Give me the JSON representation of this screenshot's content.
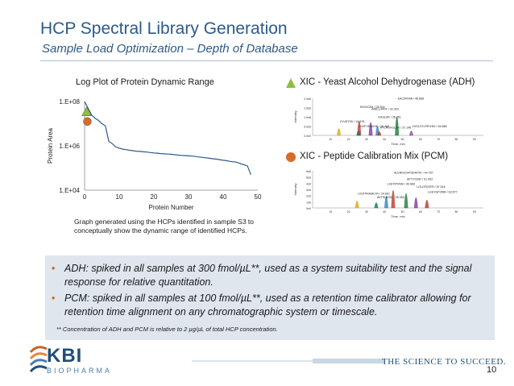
{
  "slide": {
    "title": "HCP Spectral Library Generation",
    "subtitle": "Sample Load Optimization – Depth of Database",
    "page_number": "10"
  },
  "dynamic_range_plot": {
    "title": "Log Plot of Protein Dynamic Range",
    "ylabel": "Protein Area",
    "xlabel": "Protein Number",
    "y_ticks": [
      "1.E+04",
      "1.E+06",
      "1.E+08"
    ],
    "x_ticks": [
      "0",
      "10",
      "20",
      "30",
      "40",
      "50"
    ],
    "caption": "Graph generated using the HCPs identified in sample S3 to conceptually show the dynamic range of identified HCPs.",
    "adh_marker": {
      "x": 0.6,
      "y_log10": 7.5,
      "color": "#8dbf3f"
    },
    "pcm_marker": {
      "x": 0.8,
      "y_log10": 7.1,
      "color": "#d86a2a"
    },
    "curve_log10": [
      [
        0.0,
        8.0
      ],
      [
        1,
        7.7
      ],
      [
        2,
        7.4
      ],
      [
        3,
        7.25
      ],
      [
        4,
        7.15
      ],
      [
        5,
        7.0
      ],
      [
        6,
        6.9
      ],
      [
        7,
        6.2
      ],
      [
        8,
        6.1
      ],
      [
        9,
        5.95
      ],
      [
        10,
        5.9
      ],
      [
        11,
        5.85
      ],
      [
        12,
        5.83
      ],
      [
        13,
        5.8
      ],
      [
        14,
        5.78
      ],
      [
        15,
        5.76
      ],
      [
        16,
        5.75
      ],
      [
        17,
        5.73
      ],
      [
        18,
        5.72
      ],
      [
        19,
        5.7
      ],
      [
        20,
        5.68
      ],
      [
        21,
        5.67
      ],
      [
        22,
        5.65
      ],
      [
        23,
        5.64
      ],
      [
        24,
        5.63
      ],
      [
        25,
        5.62
      ],
      [
        26,
        5.6
      ],
      [
        27,
        5.58
      ],
      [
        28,
        5.57
      ],
      [
        29,
        5.56
      ],
      [
        30,
        5.55
      ],
      [
        31,
        5.54
      ],
      [
        32,
        5.52
      ],
      [
        33,
        5.5
      ],
      [
        34,
        5.48
      ],
      [
        35,
        5.46
      ],
      [
        36,
        5.44
      ],
      [
        37,
        5.42
      ],
      [
        38,
        5.4
      ],
      [
        39,
        5.38
      ],
      [
        40,
        5.35
      ],
      [
        41,
        5.33
      ],
      [
        42,
        5.3
      ],
      [
        43,
        5.28
      ],
      [
        44,
        5.26
      ],
      [
        45,
        5.2
      ],
      [
        46,
        5.15
      ],
      [
        47,
        5.1
      ],
      [
        48,
        4.7
      ]
    ]
  },
  "xic_adh": {
    "heading": "XIC - Yeast Alcohol Dehydrogenase (ADH)",
    "marker_color": "#8dbf3f",
    "ylabel": "Intensity",
    "xlabel": "Time, min",
    "y_ticks": [
      "0.0e0",
      "5.0e5",
      "1.0e6",
      "1.5e6",
      "2.0e6"
    ],
    "x_ticks": [
      "10",
      "20",
      "30",
      "40",
      "50",
      "60",
      "70",
      "80",
      "90"
    ],
    "peaks": [
      {
        "label": "EALDFFAR / 46.866",
        "t": 46.9,
        "h": 0.95,
        "color": "#1b7b3a"
      },
      {
        "label": "SISIVGSK / 25.904",
        "t": 25.9,
        "h": 0.72,
        "color": "#c0392b"
      },
      {
        "label": "ANELLINVK / 32.303",
        "t": 32.3,
        "h": 0.66,
        "color": "#7d3c98"
      },
      {
        "label": "EAGLAK / 36.051",
        "t": 36.1,
        "h": 0.45,
        "color": "#2e86c1"
      },
      {
        "label": "YVVDTSK / 14.578",
        "t": 14.6,
        "h": 0.33,
        "color": "#d4ac0d"
      },
      {
        "label": "GVIFYESDHK / 25.485",
        "t": 25.5,
        "h": 0.2,
        "color": "#117864"
      },
      {
        "label": "ATCAGVGLGK / 37.148",
        "t": 37.1,
        "h": 0.16,
        "color": "#b03a2e"
      },
      {
        "label": "VVGLSTLPEIYEK / 54.866",
        "t": 54.9,
        "h": 0.2,
        "color": "#884ea0"
      }
    ]
  },
  "xic_pcm": {
    "heading": "XIC - Peptide Calibration Mix (PCM)",
    "marker_color": "#d86a2a",
    "ylabel": "Intensity",
    "xlabel": "Time, min",
    "y_ticks": [
      "0e0",
      "1e6",
      "2e6",
      "3e6",
      "4e6",
      "5e6",
      "6e6"
    ],
    "x_ticks": [
      "10",
      "20",
      "30",
      "40",
      "50",
      "60",
      "70",
      "80",
      "90"
    ],
    "peaks": [
      {
        "label": "ALENDIGVPSDATVK / 44.767",
        "t": 44.8,
        "h": 0.9,
        "color": "#c0392b"
      },
      {
        "label": "AFTIYSOR / 51.993",
        "t": 52.0,
        "h": 0.73,
        "color": "#1b7b3a"
      },
      {
        "label": "LSSTIPVNM / 40.989",
        "t": 41.0,
        "h": 0.6,
        "color": "#2e86c1"
      },
      {
        "label": "LGLDFDSFR / 57.516",
        "t": 57.5,
        "h": 0.52,
        "color": "#7d3c98"
      },
      {
        "label": "LVSTPRAMLFR / 24.661",
        "t": 24.7,
        "h": 0.34,
        "color": "#d4ac0d"
      },
      {
        "label": "AETELIDSK / 35.350",
        "t": 35.4,
        "h": 0.24,
        "color": "#117864"
      },
      {
        "label": "LGEYGPONR / 63.577",
        "t": 63.6,
        "h": 0.38,
        "color": "#b03a2e"
      }
    ]
  },
  "notes": {
    "bullet_1": "ADH: spiked in all samples at 300 fmol/µL**, used as a system suitability test and the signal response for relative quantitation.",
    "bullet_2": "PCM: spiked in all samples at 100 fmol/µL**, used as a retention time calibrator allowing for retention time alignment on any chromatographic system or timescale.",
    "footnote": "** Concentration of ADH and PCM is relative to 2 µg/µL of total HCP concentration."
  },
  "branding": {
    "logo_text": "KBI",
    "logo_sub": "BIOPHARMA",
    "tagline": "THE SCIENCE TO SUCCEED.",
    "brand_color": "#1f4e79",
    "accent_color": "#c8632a"
  }
}
